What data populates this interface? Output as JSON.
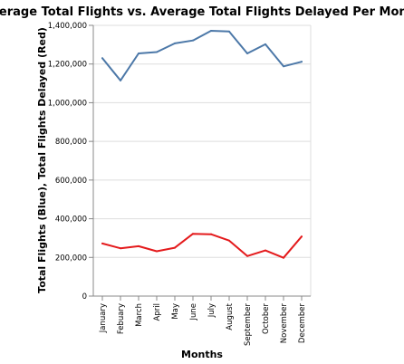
{
  "chart_data": {
    "type": "line",
    "title": "Average Total Flights vs. Average Total Flights Delayed Per Month",
    "xlabel": "Months",
    "ylabel": "Total Flights (Blue), Total Flights Delayed (Red)",
    "categories": [
      "January",
      "Febuary",
      "March",
      "April",
      "May",
      "June",
      "July",
      "August",
      "September",
      "October",
      "November",
      "December"
    ],
    "ylim": [
      0,
      1400000
    ],
    "yticks": [
      0,
      200000,
      400000,
      600000,
      800000,
      1000000,
      1200000,
      1400000
    ],
    "ytick_labels": [
      "0",
      "200,000",
      "400,000",
      "600,000",
      "800,000",
      "1,000,000",
      "1,200,000",
      "1,400,000"
    ],
    "grid": true,
    "series": [
      {
        "color": "#4c78a8",
        "values": [
          1230000,
          1115000,
          1255000,
          1262000,
          1307000,
          1322000,
          1372000,
          1368000,
          1255000,
          1302000,
          1188000,
          1212000
        ]
      },
      {
        "color": "#e41a1c",
        "values": [
          272000,
          247000,
          258000,
          232000,
          250000,
          322000,
          320000,
          287000,
          207000,
          236000,
          198000,
          308000
        ]
      }
    ]
  }
}
